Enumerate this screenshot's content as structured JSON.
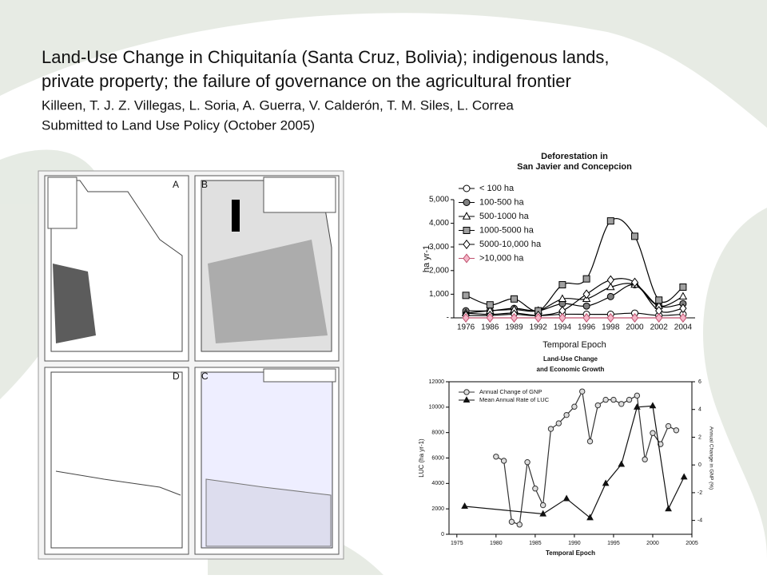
{
  "slide": {
    "title_lines": [
      "Land-Use Change in Chiquitanía (Santa Cruz, Bolivia); indigenous lands,",
      "private property; the failure of governance on the agricultural frontier"
    ],
    "authors": "Killeen, T. J. Z. Villegas, L. Soria, A. Guerra, V. Calderón, T. M. Siles, L. Correa",
    "submitted": "Submitted to Land Use Policy (October 2005)",
    "map_panels": [
      "A",
      "B",
      "D",
      "C"
    ]
  },
  "chart_data": [
    {
      "type": "line",
      "title": [
        "Deforestation in",
        "San Javier and Concepcion"
      ],
      "y_label": "ha yr-1",
      "x_label": "Temporal Epoch",
      "categories": [
        "1976",
        "1986",
        "1989",
        "1992",
        "1994",
        "1996",
        "1998",
        "2000",
        "2002",
        "2004"
      ],
      "ylim": [
        0,
        5000
      ],
      "yticks": [
        {
          "value": 0,
          "label": "-"
        },
        {
          "value": 1000,
          "label": "1,000"
        },
        {
          "value": 2000,
          "label": "2,000"
        },
        {
          "value": 3000,
          "label": "3,000"
        },
        {
          "value": 4000,
          "label": "4,000"
        },
        {
          "value": 5000,
          "label": "5,000"
        }
      ],
      "series": [
        {
          "name": "< 100  ha",
          "color": "#000000",
          "marker": "circle",
          "fill": "#ffffff",
          "values": [
            200,
            150,
            200,
            100,
            150,
            150,
            150,
            200,
            100,
            150
          ]
        },
        {
          "name": "100-500 ha",
          "color": "#000000",
          "marker": "circle",
          "fill": "#808080",
          "values": [
            300,
            300,
            400,
            300,
            600,
            500,
            900,
            1400,
            500,
            600
          ]
        },
        {
          "name": "500-1000 ha",
          "color": "#000000",
          "marker": "triangle",
          "fill": "#ffffff",
          "values": [
            200,
            300,
            350,
            300,
            800,
            800,
            1300,
            1400,
            500,
            900
          ]
        },
        {
          "name": "1000-5000 ha",
          "color": "#000000",
          "marker": "square",
          "fill": "#a0a0a0",
          "values": [
            950,
            550,
            800,
            300,
            1400,
            1650,
            4100,
            3450,
            750,
            1300
          ]
        },
        {
          "name": "5000-10,000 ha",
          "color": "#000000",
          "marker": "diamond",
          "fill": "#ffffff",
          "values": [
            100,
            100,
            150,
            100,
            300,
            1000,
            1600,
            1500,
            300,
            400
          ]
        },
        {
          "name": ">10,000 ha",
          "color": "#c0506e",
          "marker": "diamond",
          "fill": "#f4b6c8",
          "values": [
            0,
            0,
            0,
            0,
            0,
            0,
            0,
            0,
            0,
            0
          ]
        }
      ]
    },
    {
      "type": "line",
      "title": [
        "Land-Use Change",
        "and Economic Growth"
      ],
      "y_label": "LUC (ha yr-1)",
      "y2_label": "Annual Change in GNP (%)",
      "x_label": "Temporal Epoch",
      "xlim": [
        1974,
        2005
      ],
      "xticks": [
        1975,
        1980,
        1985,
        1990,
        1995,
        2000,
        2005
      ],
      "ylim": [
        0,
        12000
      ],
      "yticks": [
        0,
        2000,
        4000,
        6000,
        8000,
        10000,
        12000
      ],
      "y2lim": [
        -5,
        6
      ],
      "y2ticks": [
        -4,
        -2,
        0,
        2,
        4,
        6
      ],
      "series": [
        {
          "name": "Annual Change of GNP",
          "color": "#333333",
          "marker": "circle",
          "fill": "#dddddd",
          "axis": "y2",
          "x": [
            1980,
            1981,
            1982,
            1983,
            1984,
            1985,
            1986,
            1987,
            1988,
            1989,
            1990,
            1991,
            1992,
            1993,
            1994,
            1995,
            1996,
            1997,
            1998,
            1999,
            2000,
            2001,
            2002,
            2003
          ],
          "values": [
            0.6,
            0.3,
            -4.1,
            -4.3,
            0.2,
            -1.7,
            -2.9,
            2.6,
            3.0,
            3.6,
            4.2,
            5.3,
            1.7,
            4.3,
            4.7,
            4.7,
            4.4,
            4.7,
            5.0,
            0.4,
            2.3,
            1.5,
            2.8,
            2.5
          ]
        },
        {
          "name": "Mean Annual Rate of LUC",
          "color": "#111111",
          "marker": "triangle",
          "fill": "#111111",
          "x": [
            1976,
            1986,
            1989,
            1992,
            1994,
            1996,
            1998,
            2000,
            2002,
            2004
          ],
          "values": [
            2200,
            1600,
            2800,
            1300,
            4000,
            5500,
            10000,
            10100,
            2000,
            4500
          ]
        }
      ]
    }
  ]
}
